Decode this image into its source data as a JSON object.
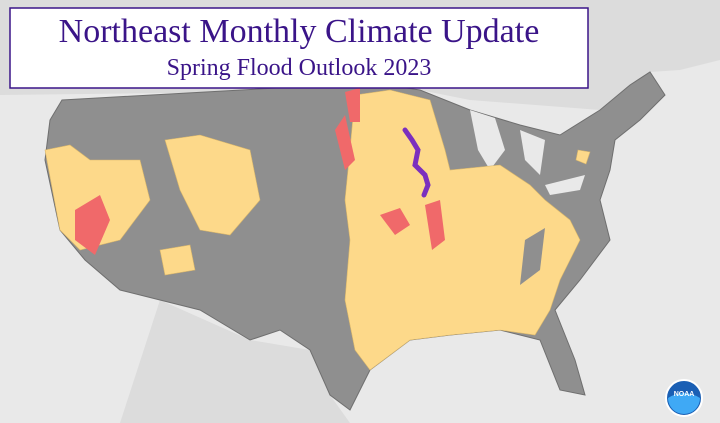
{
  "header": {
    "title": "Northeast Monthly Climate Update",
    "subtitle": "Spring Flood Outlook 2023"
  },
  "logo": {
    "label": "NOAA"
  }
}
